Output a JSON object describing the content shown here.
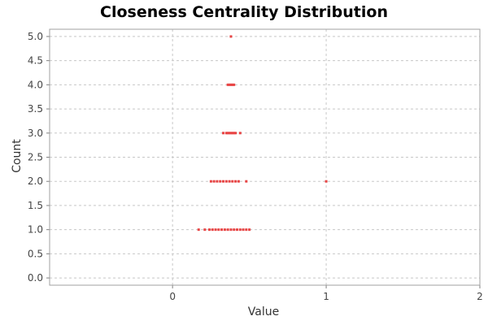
{
  "chart_data": {
    "type": "scatter",
    "title": "Closeness Centrality Distribution",
    "xlabel": "Value",
    "ylabel": "Count",
    "xlim": [
      -0.8,
      2.0
    ],
    "ylim": [
      -0.15,
      5.15
    ],
    "x_ticks": [
      0,
      1,
      2
    ],
    "x_tick_labels": [
      "0",
      "1",
      "2"
    ],
    "y_ticks": [
      0.0,
      0.5,
      1.0,
      1.5,
      2.0,
      2.5,
      3.0,
      3.5,
      4.0,
      4.5,
      5.0
    ],
    "y_tick_labels": [
      "0.0",
      "0.5",
      "1.0",
      "1.5",
      "2.0",
      "2.5",
      "3.0",
      "3.5",
      "4.0",
      "4.5",
      "5.0"
    ],
    "grid": true,
    "series_color": "#e84545",
    "points": [
      {
        "x": 0.38,
        "y": 5
      },
      {
        "x": 0.36,
        "y": 4
      },
      {
        "x": 0.37,
        "y": 4
      },
      {
        "x": 0.38,
        "y": 4
      },
      {
        "x": 0.39,
        "y": 4
      },
      {
        "x": 0.4,
        "y": 4
      },
      {
        "x": 0.33,
        "y": 3
      },
      {
        "x": 0.35,
        "y": 3
      },
      {
        "x": 0.36,
        "y": 3
      },
      {
        "x": 0.37,
        "y": 3
      },
      {
        "x": 0.38,
        "y": 3
      },
      {
        "x": 0.39,
        "y": 3
      },
      {
        "x": 0.4,
        "y": 3
      },
      {
        "x": 0.41,
        "y": 3
      },
      {
        "x": 0.44,
        "y": 3
      },
      {
        "x": 0.25,
        "y": 2
      },
      {
        "x": 0.27,
        "y": 2
      },
      {
        "x": 0.29,
        "y": 2
      },
      {
        "x": 0.31,
        "y": 2
      },
      {
        "x": 0.33,
        "y": 2
      },
      {
        "x": 0.35,
        "y": 2
      },
      {
        "x": 0.37,
        "y": 2
      },
      {
        "x": 0.39,
        "y": 2
      },
      {
        "x": 0.41,
        "y": 2
      },
      {
        "x": 0.43,
        "y": 2
      },
      {
        "x": 0.48,
        "y": 2
      },
      {
        "x": 1.0,
        "y": 2
      },
      {
        "x": 0.17,
        "y": 1
      },
      {
        "x": 0.21,
        "y": 1
      },
      {
        "x": 0.24,
        "y": 1
      },
      {
        "x": 0.26,
        "y": 1
      },
      {
        "x": 0.28,
        "y": 1
      },
      {
        "x": 0.3,
        "y": 1
      },
      {
        "x": 0.32,
        "y": 1
      },
      {
        "x": 0.34,
        "y": 1
      },
      {
        "x": 0.36,
        "y": 1
      },
      {
        "x": 0.38,
        "y": 1
      },
      {
        "x": 0.4,
        "y": 1
      },
      {
        "x": 0.42,
        "y": 1
      },
      {
        "x": 0.44,
        "y": 1
      },
      {
        "x": 0.46,
        "y": 1
      },
      {
        "x": 0.48,
        "y": 1
      },
      {
        "x": 0.5,
        "y": 1
      }
    ]
  }
}
